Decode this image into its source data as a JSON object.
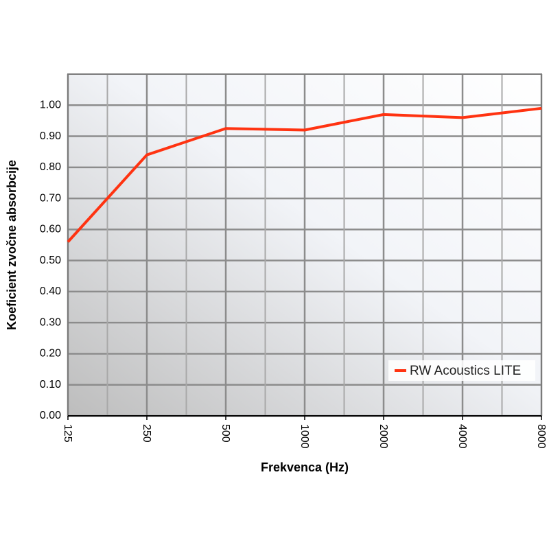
{
  "chart_data": {
    "type": "line",
    "xlabel": "Frekvenca (Hz)",
    "ylabel": "Koeficient zvočne absorbcije",
    "x": [
      125,
      250,
      500,
      1000,
      2000,
      4000,
      8000
    ],
    "series": [
      {
        "name": "RW Acoustics LITE",
        "color": "#ff3311",
        "values": [
          0.56,
          0.84,
          0.925,
          0.92,
          0.97,
          0.96,
          0.99
        ]
      }
    ],
    "xscale": "log",
    "xlim": [
      125,
      8000
    ],
    "xticks": [
      125,
      250,
      500,
      1000,
      2000,
      4000,
      8000
    ],
    "ylim": [
      0,
      1.1
    ],
    "yticks": [
      {
        "value": 0,
        "label": "0.00"
      },
      {
        "value": 0.1,
        "label": "0.10"
      },
      {
        "value": 0.2,
        "label": "0.20"
      },
      {
        "value": 0.3,
        "label": "0.30"
      },
      {
        "value": 0.4,
        "label": "0.40"
      },
      {
        "value": 0.5,
        "label": "0.50"
      },
      {
        "value": 0.6,
        "label": "0.60"
      },
      {
        "value": 0.7,
        "label": "0.70"
      },
      {
        "value": 0.8,
        "label": "0.80"
      },
      {
        "value": 0.9,
        "label": "0.90"
      },
      {
        "value": 1,
        "label": "1.00"
      }
    ],
    "grid": true,
    "legend": "lower right"
  }
}
